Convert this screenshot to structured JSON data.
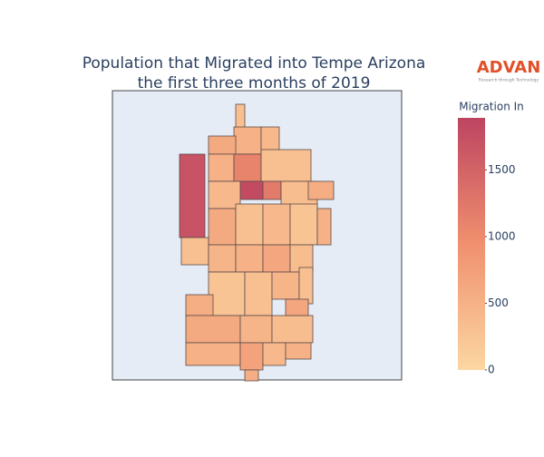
{
  "chart_data": {
    "type": "choropleth",
    "title_lines": [
      "Population that Migrated into Tempe Arizona",
      "the first three months of 2019"
    ],
    "logo": {
      "name": "ADVAN",
      "tagline": "Research through Technology"
    },
    "colorbar_title": "Migration In",
    "clim": [
      0,
      1890
    ],
    "cticks": [
      0,
      500,
      1000,
      1500
    ],
    "colorscale": [
      [
        0,
        "#fcd7a1"
      ],
      [
        0.5,
        "#f0906e"
      ],
      [
        1,
        "#bd4461"
      ]
    ],
    "values": [
      1700,
      300,
      500,
      400,
      600,
      500,
      1100,
      300,
      1800,
      1200,
      400,
      350,
      550,
      600,
      300,
      400,
      250,
      500,
      300,
      450,
      500,
      650,
      350,
      250,
      300,
      450,
      300,
      550,
      600,
      450,
      350,
      650,
      500,
      700,
      400,
      500,
      550
    ]
  }
}
